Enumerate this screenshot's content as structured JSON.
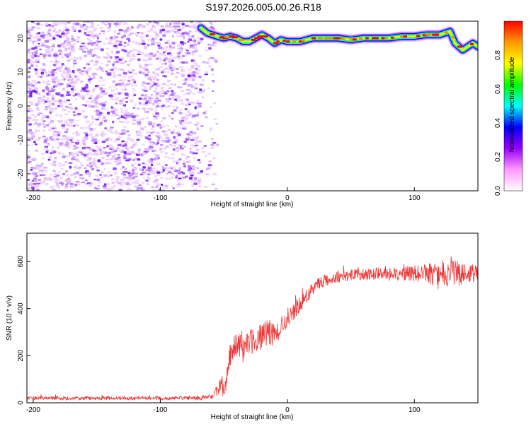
{
  "figure": {
    "title": "S197.2026.005.00.26.R18"
  },
  "chart_data": [
    {
      "type": "heatmap",
      "xlabel": "Height of straight line (km)",
      "ylabel": "Frequency (Hz)",
      "xlim": [
        -205,
        150
      ],
      "ylim": [
        -25,
        25
      ],
      "xticks": [
        -200,
        -100,
        0,
        100
      ],
      "yticks": [
        -20,
        -10,
        0,
        10,
        20
      ],
      "grid": false,
      "colorbar": {
        "label": "Normalized spectral amplitude",
        "range": [
          0,
          1
        ],
        "ticks": [
          0.0,
          0.2,
          0.4,
          0.6,
          0.8
        ],
        "colormap": [
          "#ffffff",
          "#ff99ff",
          "#9900ff",
          "#0000ff",
          "#00ffff",
          "#00ff00",
          "#ffff00",
          "#ff9900",
          "#ff0000"
        ]
      },
      "noise_region": {
        "x_from": -205,
        "x_to": -55,
        "y_from": -25,
        "y_to": 25
      },
      "signal_trace": {
        "x": [
          -68,
          -63,
          -55,
          -50,
          -45,
          -40,
          -35,
          -30,
          -25,
          -20,
          -15,
          -10,
          -5,
          0,
          5,
          10,
          15,
          20,
          25,
          30,
          40,
          50,
          60,
          70,
          80,
          90,
          100,
          110,
          120,
          128,
          132,
          138,
          142,
          146,
          150
        ],
        "y": [
          23,
          21.5,
          20.5,
          20,
          20.5,
          20,
          19,
          19,
          20,
          21,
          20,
          18.5,
          19.5,
          19,
          19,
          19,
          19.5,
          20,
          20,
          20,
          20,
          19.5,
          20,
          20,
          20,
          20.5,
          20.5,
          21,
          21,
          22,
          18.5,
          16.5,
          17.5,
          18.5,
          17.5
        ]
      }
    },
    {
      "type": "line",
      "xlabel": "Height of straight line (km)",
      "ylabel": "SNR (10 * v/v)",
      "xlim": [
        -205,
        150
      ],
      "ylim": [
        0,
        720
      ],
      "xticks": [
        -200,
        -100,
        0,
        100
      ],
      "yticks": [
        0,
        200,
        400,
        600
      ],
      "grid": false,
      "color": "#ee3333",
      "series": [
        {
          "x": [
            -205,
            -150,
            -100,
            -70,
            -62,
            -58,
            -55,
            -52,
            -50,
            -47,
            -45,
            -40,
            -35,
            -30,
            -25,
            -20,
            -15,
            -10,
            -5,
            0,
            5,
            10,
            15,
            20,
            25,
            30,
            40,
            50,
            60,
            70,
            80,
            90,
            100,
            110,
            120,
            130,
            140,
            150
          ],
          "values": [
            20,
            20,
            20,
            20,
            22,
            30,
            50,
            80,
            60,
            130,
            200,
            240,
            230,
            260,
            270,
            280,
            300,
            290,
            320,
            360,
            390,
            420,
            450,
            480,
            510,
            520,
            535,
            540,
            545,
            548,
            545,
            550,
            548,
            552,
            545,
            550,
            548,
            550
          ],
          "noise": [
            8,
            8,
            8,
            8,
            12,
            20,
            30,
            40,
            45,
            50,
            55,
            60,
            60,
            60,
            55,
            55,
            55,
            50,
            45,
            45,
            40,
            35,
            30,
            30,
            25,
            25,
            25,
            25,
            25,
            25,
            30,
            30,
            35,
            45,
            60,
            60,
            45,
            35
          ]
        }
      ]
    }
  ]
}
